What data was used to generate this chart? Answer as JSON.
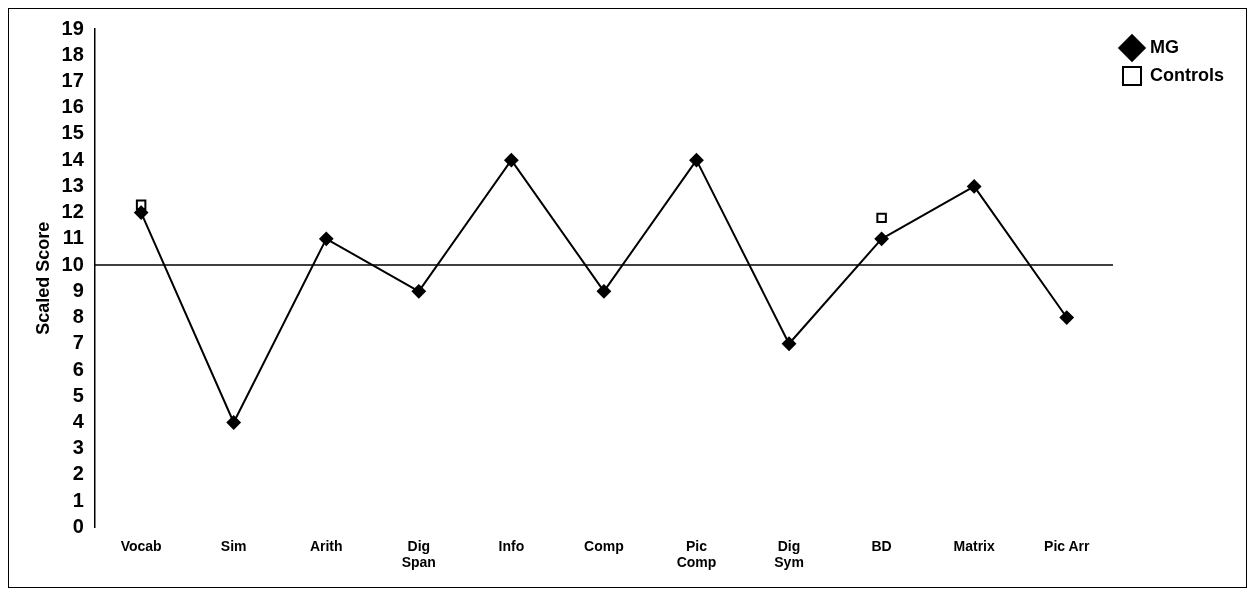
{
  "chart_data": {
    "type": "line",
    "ylabel": "Scaled Score",
    "categories": [
      "Vocab",
      "Sim",
      "Arith",
      "Dig\nSpan",
      "Info",
      "Comp",
      "Pic\nComp",
      "Dig\nSym",
      "BD",
      "Matrix",
      "Pic Arr"
    ],
    "series": [
      {
        "name": "MG",
        "color": "#000000",
        "marker": "diamond",
        "values": [
          12,
          4,
          11,
          9,
          14,
          9,
          14,
          7,
          11,
          13,
          8
        ]
      },
      {
        "name": "Controls",
        "type": "scatter",
        "color": "#000000",
        "marker": "square",
        "values": [
          12.3,
          null,
          null,
          null,
          null,
          null,
          null,
          null,
          11.8,
          null,
          null
        ]
      }
    ],
    "ylim": [
      0,
      19
    ],
    "yticks": [
      0,
      1,
      2,
      3,
      4,
      5,
      6,
      7,
      8,
      9,
      10,
      11,
      12,
      13,
      14,
      15,
      16,
      17,
      18,
      19
    ],
    "ref_lines": [
      {
        "axis": "y",
        "value": 10,
        "color": "#000000"
      }
    ],
    "grid": false,
    "legend": "right"
  }
}
